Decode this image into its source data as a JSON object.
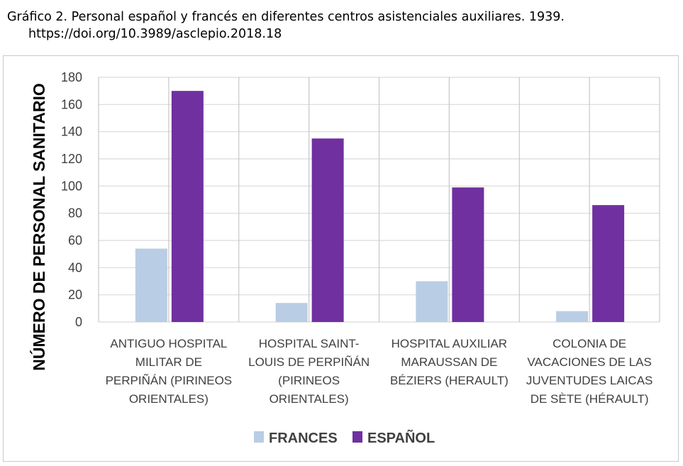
{
  "caption": {
    "line1": "Gráfico 2. Personal español y francés en diferentes centros asistenciales auxiliares. 1939.",
    "line2": "https://doi.org/10.3989/asclepio.2018.18"
  },
  "chart_data": {
    "type": "bar",
    "title": "",
    "ylabel": "NÚMERO DE PERSONAL SANITARIO",
    "xlabel": "",
    "ylim": [
      0,
      180
    ],
    "yticks": [
      "0",
      "20",
      "40",
      "60",
      "80",
      "100",
      "120",
      "140",
      "160",
      "180"
    ],
    "categories": [
      [
        "ANTIGUO HOSPITAL",
        "MILITAR DE",
        "PERPIÑÁN (PIRINEOS",
        "ORIENTALES)"
      ],
      [
        "HOSPITAL SAINT-",
        "LOUIS DE PERPIÑÁN",
        "(PIRINEOS",
        "ORIENTALES)"
      ],
      [
        "HOSPITAL AUXILIAR",
        "MARAUSSAN DE",
        "BÉZIERS (HERAULT)"
      ],
      [
        "COLONIA DE",
        "VACACIONES DE LAS",
        "JUVENTUDES LAICAS",
        "DE SÈTE (HÉRAULT)"
      ]
    ],
    "series": [
      {
        "name": "FRANCES",
        "color": "#b9cde5",
        "values": [
          54,
          14,
          30,
          8
        ]
      },
      {
        "name": "ESPAÑOL",
        "color": "#7030a0",
        "values": [
          170,
          135,
          99,
          86
        ]
      }
    ],
    "grid": true,
    "legend_position": "bottom"
  }
}
